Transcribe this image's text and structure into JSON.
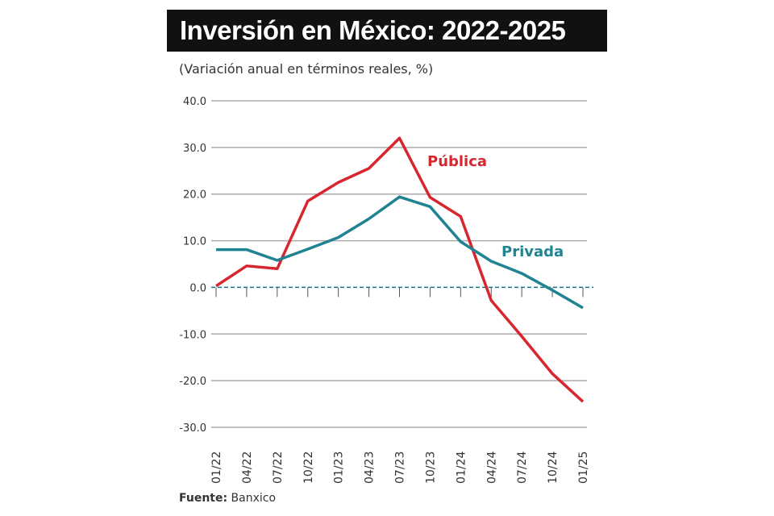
{
  "title": "Inversión en México: 2022-2025",
  "subtitle": "(Variación anual en términos reales, %)",
  "source": {
    "label": "Fuente:",
    "value": "Banxico"
  },
  "chart_data": {
    "type": "line",
    "title": "Inversión en México: 2022-2025",
    "ylabel": "",
    "xlabel": "",
    "ylim": [
      -30,
      40
    ],
    "yticks": [
      "40.0",
      "30.0",
      "20.0",
      "10.0",
      "0.0",
      "-10.0",
      "-20.0",
      "-30.0"
    ],
    "grid": true,
    "categories": [
      "01/22",
      "04/22",
      "07/22",
      "10/22",
      "01/23",
      "04/23",
      "07/23",
      "10/23",
      "01/24",
      "04/24",
      "07/24",
      "10/24",
      "01/25"
    ],
    "series": [
      {
        "name": "Pública",
        "color": "#d7262e",
        "values": [
          0.3,
          4.6,
          4.0,
          18.5,
          22.5,
          25.5,
          32.0,
          19.3,
          15.2,
          -2.8,
          -10.5,
          -18.5,
          -24.5
        ]
      },
      {
        "name": "Privada",
        "color": "#1f8391",
        "values": [
          8.1,
          8.1,
          5.8,
          8.2,
          10.7,
          14.7,
          19.4,
          17.3,
          9.8,
          5.6,
          3.0,
          -0.6,
          -4.4
        ]
      }
    ]
  }
}
